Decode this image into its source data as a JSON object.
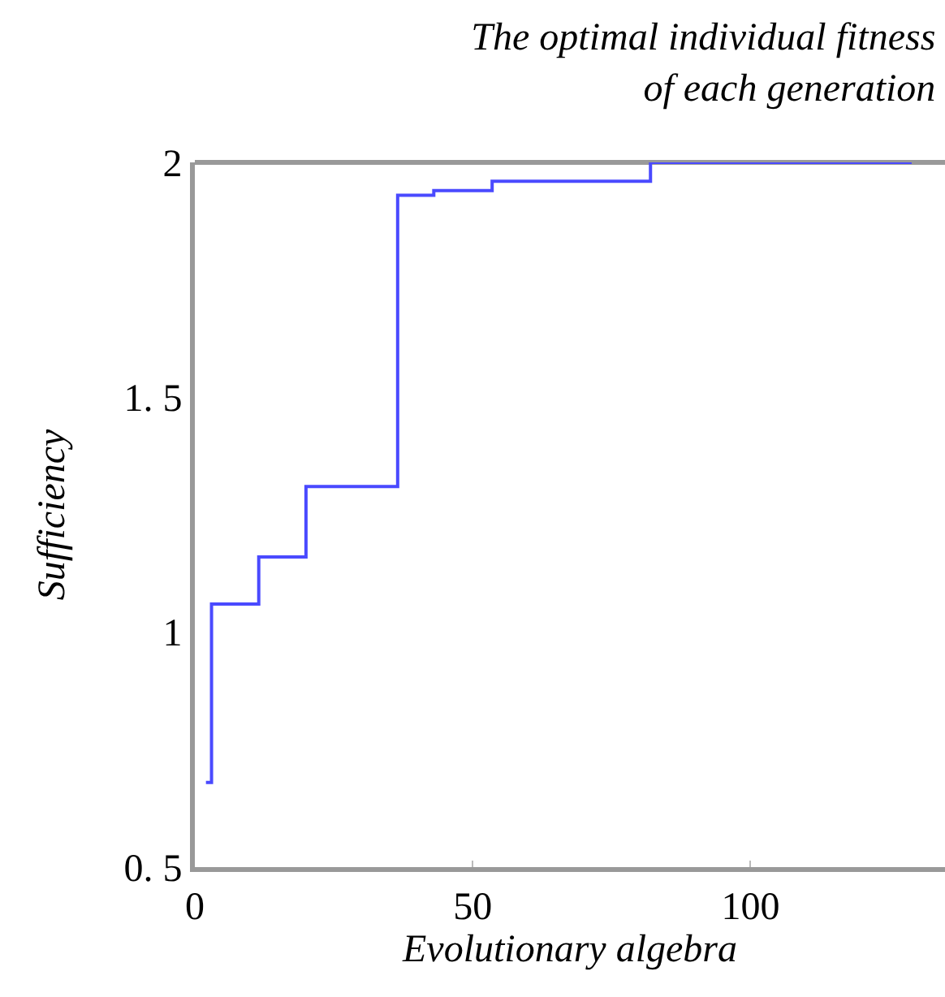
{
  "chart_data": {
    "type": "step",
    "title": "The optimal individual fitness\nof each generation",
    "xlabel": "Evolutionary algebra",
    "ylabel": "Sufficiency",
    "x": [
      2,
      3,
      11.5,
      20,
      36.5,
      43,
      53.5,
      82,
      129
    ],
    "series": [
      {
        "color": "#4a4aff",
        "values": [
          0.68,
          1.06,
          1.16,
          1.31,
          1.93,
          1.94,
          1.96,
          2.0,
          2.0
        ]
      }
    ],
    "xlim": [
      0,
      135
    ],
    "ylim": [
      0.5,
      2
    ],
    "xticks": [
      0,
      50,
      100
    ],
    "yticks": [
      {
        "value": 0.5,
        "label": "0. 5"
      },
      1,
      {
        "value": 1.5,
        "label": "1. 5"
      },
      2
    ],
    "marker": "none",
    "line_style": "solid"
  }
}
